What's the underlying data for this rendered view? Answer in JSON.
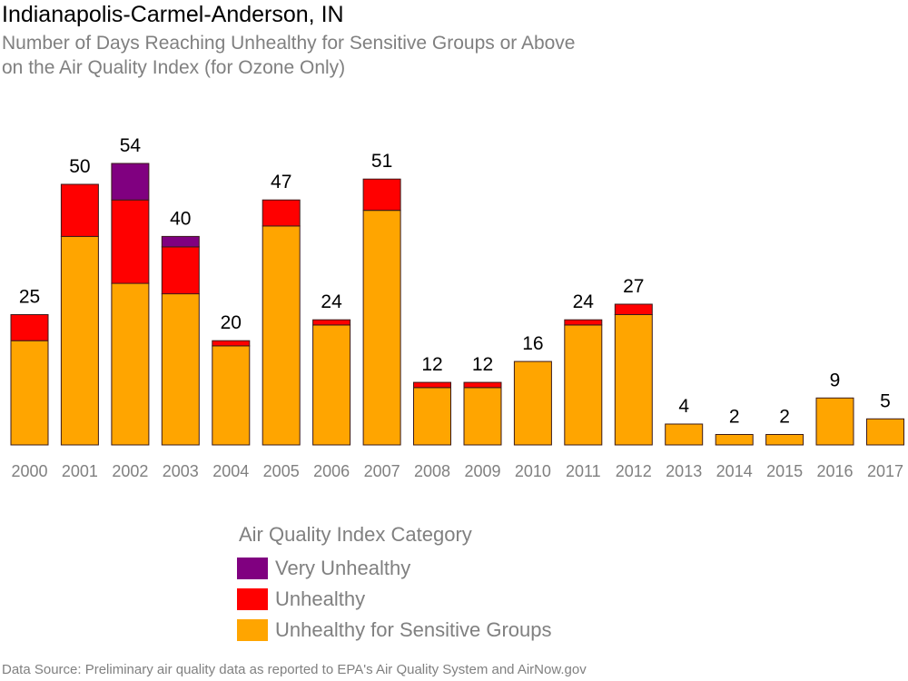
{
  "title": "Indianapolis-Carmel-Anderson, IN",
  "subtitle_lines": [
    "Number of Days Reaching Unhealthy for Sensitive Groups or Above",
    "on the Air Quality Index (for Ozone Only)"
  ],
  "legend": {
    "title": "Air Quality Index Category",
    "items": [
      {
        "label": "Very Unhealthy",
        "color": "#800080"
      },
      {
        "label": "Unhealthy",
        "color": "#ff0000"
      },
      {
        "label": "Unhealthy for Sensitive Groups",
        "color": "#ffa500"
      }
    ]
  },
  "source": "Data Source: Preliminary air quality data as reported to EPA's Air Quality System and AirNow.gov",
  "chart_data": {
    "type": "bar",
    "stacked": true,
    "categories": [
      "2000",
      "2001",
      "2002",
      "2003",
      "2004",
      "2005",
      "2006",
      "2007",
      "2008",
      "2009",
      "2010",
      "2011",
      "2012",
      "2013",
      "2014",
      "2015",
      "2016",
      "2017"
    ],
    "series": [
      {
        "name": "Unhealthy for Sensitive Groups",
        "color": "#ffa500",
        "values": [
          20,
          40,
          31,
          29,
          19,
          42,
          23,
          45,
          11,
          11,
          16,
          23,
          25,
          4,
          2,
          2,
          9,
          5
        ]
      },
      {
        "name": "Unhealthy",
        "color": "#ff0000",
        "values": [
          5,
          10,
          16,
          9,
          1,
          5,
          1,
          6,
          1,
          1,
          0,
          1,
          2,
          0,
          0,
          0,
          0,
          0
        ]
      },
      {
        "name": "Very Unhealthy",
        "color": "#800080",
        "values": [
          0,
          0,
          7,
          2,
          0,
          0,
          0,
          0,
          0,
          0,
          0,
          0,
          0,
          0,
          0,
          0,
          0,
          0
        ]
      }
    ],
    "totals": [
      25,
      50,
      54,
      40,
      20,
      47,
      24,
      51,
      12,
      12,
      16,
      24,
      27,
      4,
      2,
      2,
      9,
      5
    ],
    "ylim": [
      0,
      54
    ],
    "grid": false,
    "legend_position": "bottom"
  }
}
